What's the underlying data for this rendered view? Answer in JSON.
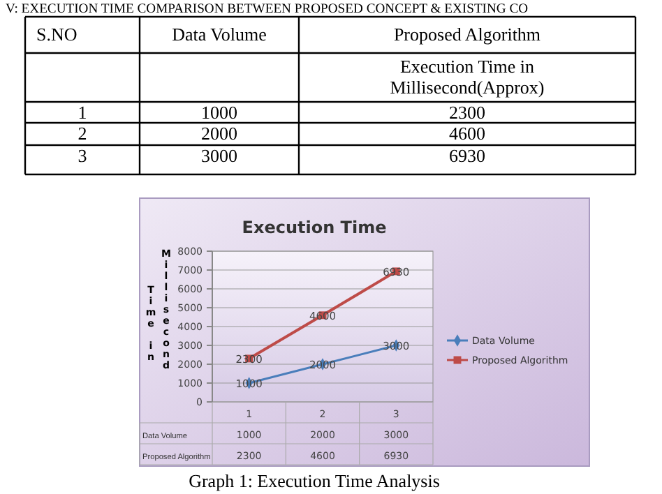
{
  "chart_data": [
    {
      "type": "other",
      "title": "V: EXECUTION TIME COMPARISON BETWEEN PROPOSED CONCEPT & EXISTING CO",
      "categories": [
        "S.NO",
        "Data Volume",
        "Proposed Algorithm"
      ],
      "annotations": [
        "Execution Time in Millisecond(Approx)",
        "1",
        "1000",
        "2300",
        "2",
        "2000",
        "4600",
        "3",
        "3000",
        "6930"
      ]
    },
    {
      "type": "line",
      "title": "Execution Time",
      "ylabel": "Time in Millisecond",
      "categories": [
        "1",
        "2",
        "3"
      ],
      "series": [
        {
          "name": "Data Volume",
          "color": "#4a7ebb",
          "marker": "diamond",
          "values": [
            1000,
            2000,
            3000
          ]
        },
        {
          "name": "Proposed Algorithm",
          "color": "#be4b48",
          "marker": "square",
          "values": [
            2300,
            4600,
            6930
          ]
        }
      ],
      "ylim": [
        0,
        8000
      ],
      "yticks": [
        0,
        1000,
        2000,
        3000,
        4000,
        5000,
        6000,
        7000,
        8000
      ],
      "grid": "y",
      "legend": "right",
      "data_labels": true,
      "annotations": [
        "Graph 1: Execution Time Analysis"
      ]
    }
  ]
}
